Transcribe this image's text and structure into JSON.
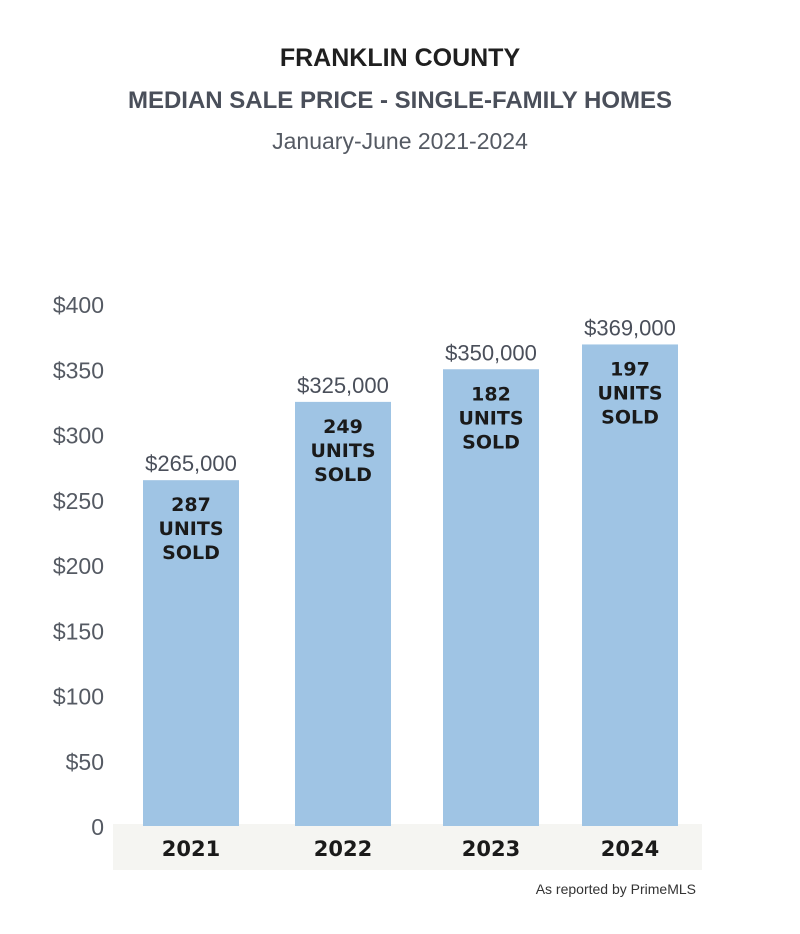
{
  "chart_data": {
    "type": "bar",
    "title": "FRANKLIN COUNTY",
    "subtitle": "MEDIAN SALE PRICE - SINGLE-FAMILY HOMES",
    "period": "January-June 2021-2024",
    "categories": [
      "2021",
      "2022",
      "2023",
      "2024"
    ],
    "values": [
      265,
      325,
      350,
      369
    ],
    "value_labels": [
      "$265,000",
      "$325,000",
      "$350,000",
      "$369,000"
    ],
    "units_sold": [
      [
        "287",
        "UNITS",
        "SOLD"
      ],
      [
        "249",
        "UNITS",
        "SOLD"
      ],
      [
        "182",
        "UNITS",
        "SOLD"
      ],
      [
        "197",
        "UNITS",
        "SOLD"
      ]
    ],
    "ylim": [
      0,
      400
    ],
    "yticks": [
      0,
      50,
      100,
      150,
      200,
      250,
      300,
      350,
      400
    ],
    "ytick_labels": [
      "0",
      "$50",
      "$100",
      "$150",
      "$200",
      "$250",
      "$300",
      "$350",
      "$400"
    ],
    "grid": false,
    "bar_color": "#9fc4e4",
    "axis_band_color": "#f5f5f2"
  },
  "source": "As reported by PrimeMLS"
}
